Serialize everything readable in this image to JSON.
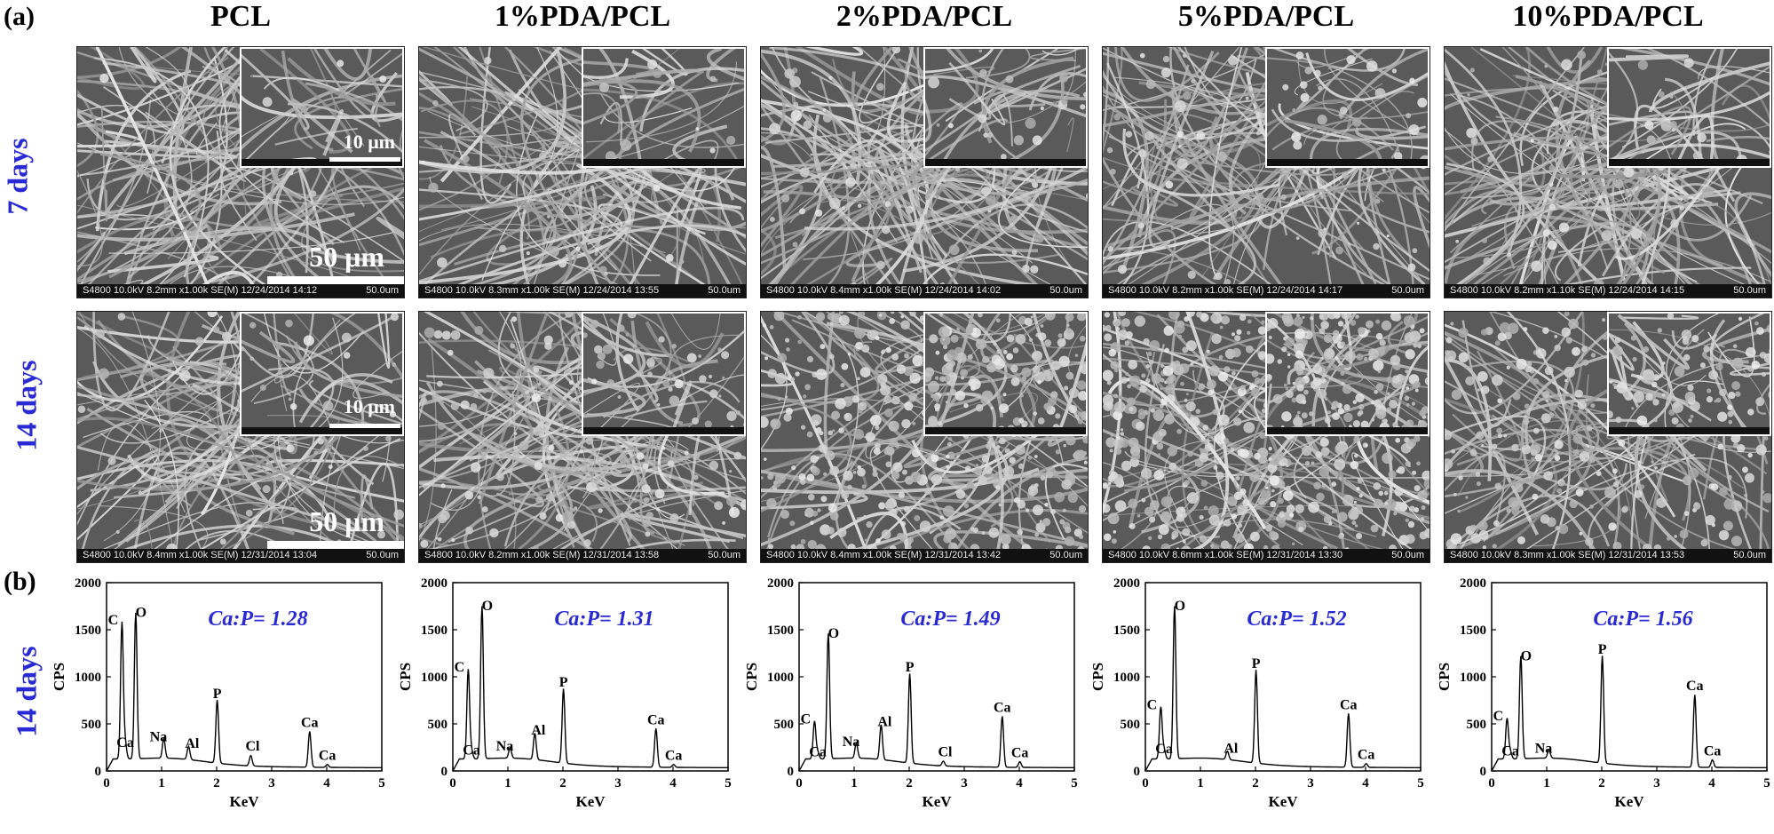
{
  "panel_a_letter": "(a)",
  "panel_b_letter": "(b)",
  "columns": [
    "PCL",
    "1%PDA/PCL",
    "2%PDA/PCL",
    "5%PDA/PCL",
    "10%PDA/PCL"
  ],
  "rows": [
    "7 days",
    "14 days"
  ],
  "eds_row_label": "14 days",
  "scale_main": "50 μm",
  "scale_inset": "10 μm",
  "sem_info": [
    [
      {
        "left": "S4800 10.0kV 8.2mm x1.00k SE(M) 12/24/2014 14:12",
        "right": "50.0um"
      },
      {
        "left": "S4800 10.0kV 8.3mm x1.00k SE(M) 12/24/2014 13:55",
        "right": "50.0um"
      },
      {
        "left": "S4800 10.0kV 8.4mm x1.00k SE(M) 12/24/2014 14:02",
        "right": "50.0um"
      },
      {
        "left": "S4800 10.0kV 8.2mm x1.00k SE(M) 12/24/2014 14:17",
        "right": "50.0um"
      },
      {
        "left": "S4800 10.0kV 8.2mm x1.10k SE(M) 12/24/2014 14:15",
        "right": "50.0um"
      }
    ],
    [
      {
        "left": "S4800 10.0kV 8.4mm x1.00k SE(M) 12/31/2014 13:04",
        "right": "50.0um"
      },
      {
        "left": "S4800 10.0kV 8.2mm x1.00k SE(M) 12/31/2014 13:58",
        "right": "50.0um"
      },
      {
        "left": "S4800 10.0kV 8.4mm x1.00k SE(M) 12/31/2014 13:42",
        "right": "50.0um"
      },
      {
        "left": "S4800 10.0kV 8.6mm x1.00k SE(M) 12/31/2014 13:30",
        "right": "50.0um"
      },
      {
        "left": "S4800 10.0kV 8.3mm x1.00k SE(M) 12/31/2014 13:53",
        "right": "50.0um"
      }
    ]
  ],
  "chart_data": [
    {
      "type": "line",
      "title": "Ca:P= 1.28",
      "xlabel": "KeV",
      "ylabel": "CPS",
      "xlim": [
        0,
        5
      ],
      "ylim": [
        0,
        2000
      ],
      "xticks": [
        0,
        1,
        2,
        3,
        4,
        5
      ],
      "yticks": [
        0,
        500,
        1000,
        1500,
        2000
      ],
      "peaks": [
        {
          "label": "C",
          "x": 0.28,
          "y": 1480
        },
        {
          "label": "Ca",
          "x": 0.34,
          "y": 200
        },
        {
          "label": "O",
          "x": 0.53,
          "y": 1580
        },
        {
          "label": "Na",
          "x": 1.04,
          "y": 240
        },
        {
          "label": "Al",
          "x": 1.49,
          "y": 170
        },
        {
          "label": "P",
          "x": 2.01,
          "y": 700
        },
        {
          "label": "Cl",
          "x": 2.62,
          "y": 140
        },
        {
          "label": "Ca",
          "x": 3.69,
          "y": 410
        },
        {
          "label": "Ca",
          "x": 4.01,
          "y": 60
        }
      ]
    },
    {
      "type": "line",
      "title": "Ca:P= 1.31",
      "xlabel": "KeV",
      "ylabel": "CPS",
      "xlim": [
        0,
        5
      ],
      "ylim": [
        0,
        2000
      ],
      "xticks": [
        0,
        1,
        2,
        3,
        4,
        5
      ],
      "yticks": [
        0,
        500,
        1000,
        1500,
        2000
      ],
      "peaks": [
        {
          "label": "C",
          "x": 0.28,
          "y": 980
        },
        {
          "label": "Ca",
          "x": 0.34,
          "y": 120
        },
        {
          "label": "O",
          "x": 0.53,
          "y": 1650
        },
        {
          "label": "Na",
          "x": 1.04,
          "y": 140
        },
        {
          "label": "Al",
          "x": 1.49,
          "y": 310
        },
        {
          "label": "P",
          "x": 2.01,
          "y": 820
        },
        {
          "label": "Ca",
          "x": 3.69,
          "y": 440
        },
        {
          "label": "Ca",
          "x": 4.01,
          "y": 60
        }
      ]
    },
    {
      "type": "line",
      "title": "Ca:P= 1.49",
      "xlabel": "KeV",
      "ylabel": "CPS",
      "xlim": [
        0,
        5
      ],
      "ylim": [
        0,
        2000
      ],
      "xticks": [
        0,
        1,
        2,
        3,
        4,
        5
      ],
      "yticks": [
        0,
        500,
        1000,
        1500,
        2000
      ],
      "peaks": [
        {
          "label": "C",
          "x": 0.28,
          "y": 430
        },
        {
          "label": "Ca",
          "x": 0.34,
          "y": 100
        },
        {
          "label": "O",
          "x": 0.53,
          "y": 1360
        },
        {
          "label": "Na",
          "x": 1.04,
          "y": 190
        },
        {
          "label": "Al",
          "x": 1.49,
          "y": 400
        },
        {
          "label": "P",
          "x": 2.01,
          "y": 980
        },
        {
          "label": "Cl",
          "x": 2.62,
          "y": 80
        },
        {
          "label": "Ca",
          "x": 3.69,
          "y": 570
        },
        {
          "label": "Ca",
          "x": 4.01,
          "y": 90
        }
      ]
    },
    {
      "type": "line",
      "title": "Ca:P= 1.52",
      "xlabel": "KeV",
      "ylabel": "CPS",
      "xlim": [
        0,
        5
      ],
      "ylim": [
        0,
        2000
      ],
      "xticks": [
        0,
        1,
        2,
        3,
        4,
        5
      ],
      "yticks": [
        0,
        500,
        1000,
        1500,
        2000
      ],
      "peaks": [
        {
          "label": "C",
          "x": 0.28,
          "y": 580
        },
        {
          "label": "Ca",
          "x": 0.34,
          "y": 130
        },
        {
          "label": "O",
          "x": 0.53,
          "y": 1650
        },
        {
          "label": "Al",
          "x": 1.49,
          "y": 120
        },
        {
          "label": "P",
          "x": 2.01,
          "y": 1020
        },
        {
          "label": "Ca",
          "x": 3.69,
          "y": 600
        },
        {
          "label": "Ca",
          "x": 4.01,
          "y": 70
        }
      ]
    },
    {
      "type": "line",
      "title": "Ca:P= 1.56",
      "xlabel": "KeV",
      "ylabel": "CPS",
      "xlim": [
        0,
        5
      ],
      "ylim": [
        0,
        2000
      ],
      "xticks": [
        0,
        1,
        2,
        3,
        4,
        5
      ],
      "yticks": [
        0,
        500,
        1000,
        1500,
        2000
      ],
      "peaks": [
        {
          "label": "C",
          "x": 0.28,
          "y": 460
        },
        {
          "label": "Ca",
          "x": 0.34,
          "y": 110
        },
        {
          "label": "O",
          "x": 0.53,
          "y": 1120
        },
        {
          "label": "Na",
          "x": 1.04,
          "y": 120
        },
        {
          "label": "P",
          "x": 2.01,
          "y": 1170
        },
        {
          "label": "Ca",
          "x": 3.69,
          "y": 800
        },
        {
          "label": "Ca",
          "x": 4.01,
          "y": 110
        }
      ]
    }
  ]
}
